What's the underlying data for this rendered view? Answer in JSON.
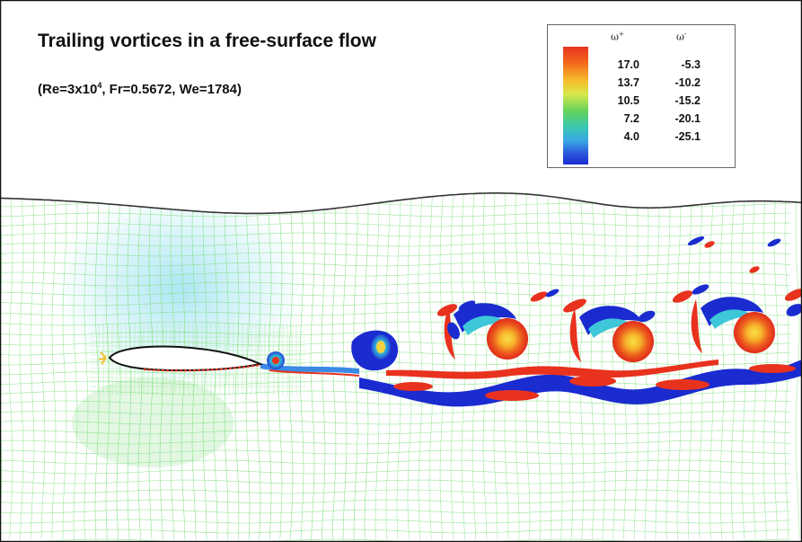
{
  "title": "Trailing vortices in a free-surface flow",
  "params": {
    "prefix": "(Re=3x10",
    "exponent": "4",
    "suffix": ", Fr=0.5672, We=1784)"
  },
  "legend": {
    "head_pos": "ω",
    "head_pos_sup": "+",
    "head_neg": "ω",
    "head_neg_sup": "-",
    "rows": [
      {
        "pos": "17.0",
        "neg": "-5.3"
      },
      {
        "pos": "13.7",
        "neg": "-10.2"
      },
      {
        "pos": "10.5",
        "neg": "-15.2"
      },
      {
        "pos": "7.2",
        "neg": "-20.1"
      },
      {
        "pos": "4.0",
        "neg": "-25.1"
      }
    ]
  },
  "colors": {
    "mesh": "#7fe07f",
    "surface": "#333333",
    "positive_vortex": "#e8321e",
    "positive_core": "#f5c531",
    "negative_vortex": "#1a2bd0",
    "hydrofoil": "#ffffff"
  }
}
